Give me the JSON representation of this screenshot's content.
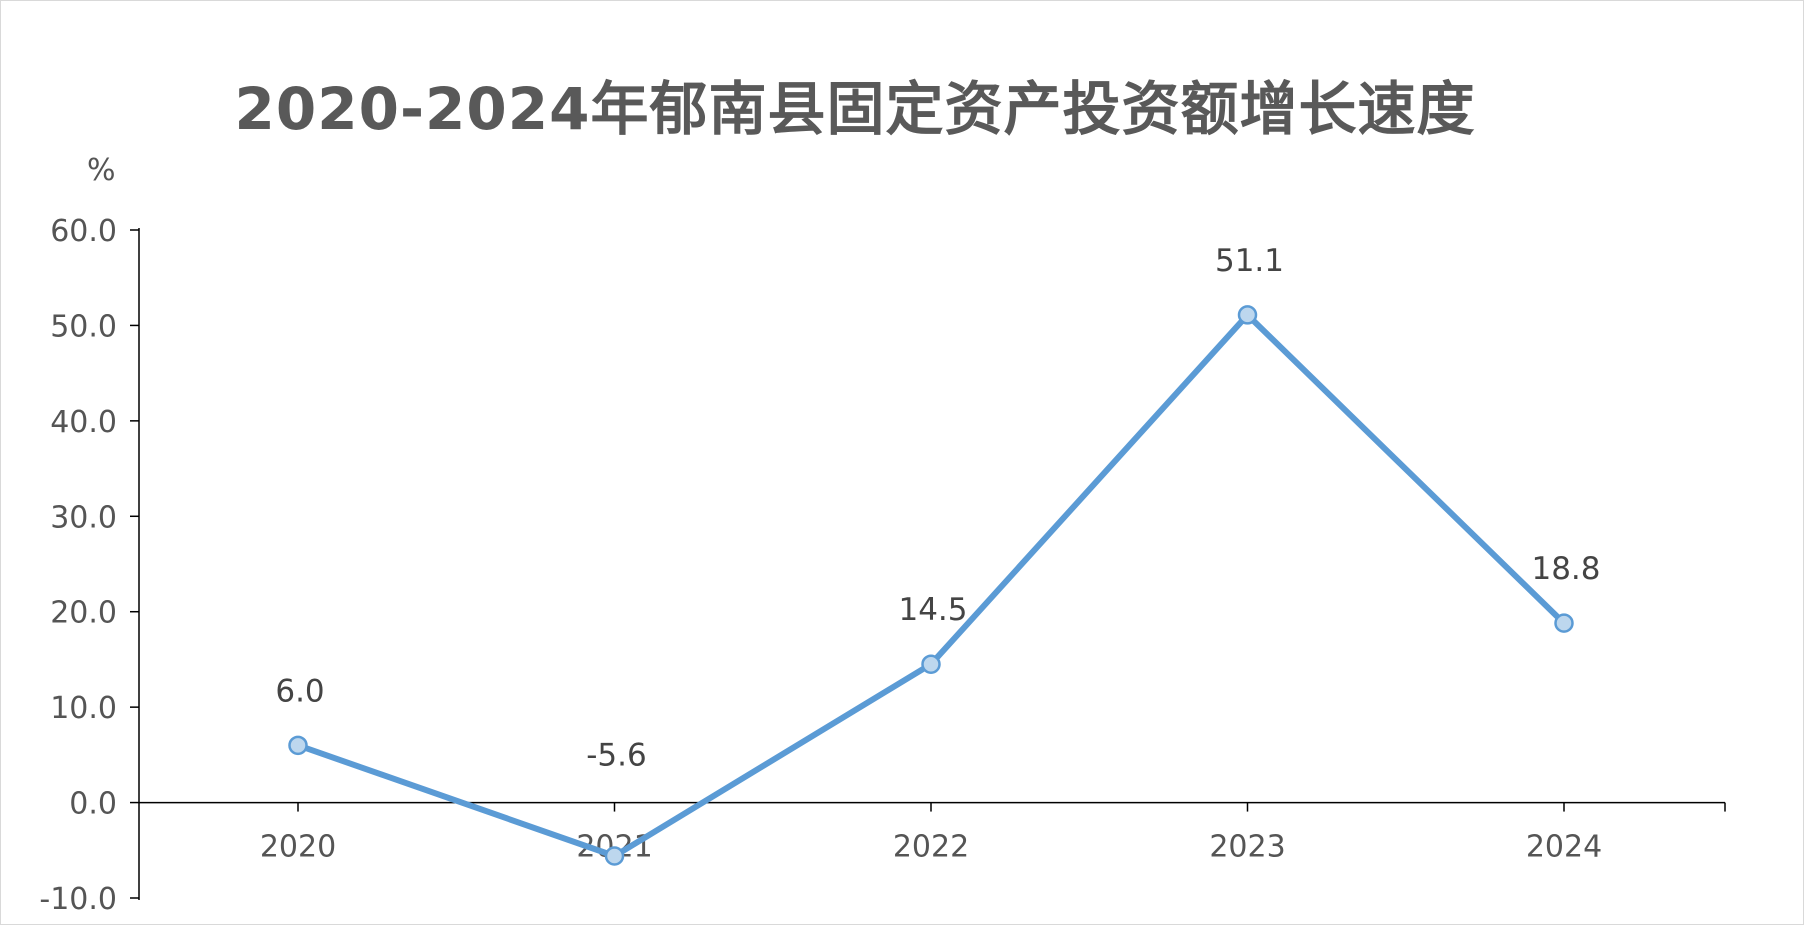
{
  "chart_data": {
    "type": "line",
    "title": "2020-2024年郁南县固定资产投资额增长速度",
    "ylabel": "%",
    "xlabel": "",
    "categories": [
      "2020",
      "2021",
      "2022",
      "2023",
      "2024"
    ],
    "values": [
      6.0,
      -5.6,
      14.5,
      51.1,
      18.8
    ],
    "data_labels": [
      "6.0",
      "-5.6",
      "14.5",
      "51.1",
      "18.8"
    ],
    "ylim": [
      -10,
      60
    ],
    "yticks": [
      "-10.0",
      "0.0",
      "10.0",
      "20.0",
      "30.0",
      "40.0",
      "50.0",
      "60.0"
    ],
    "grid": false,
    "legend": "none",
    "colors": {
      "line": "#5b9bd5",
      "marker_fill": "#bdd7ee",
      "axis": "#000000",
      "text": "#595959"
    }
  }
}
